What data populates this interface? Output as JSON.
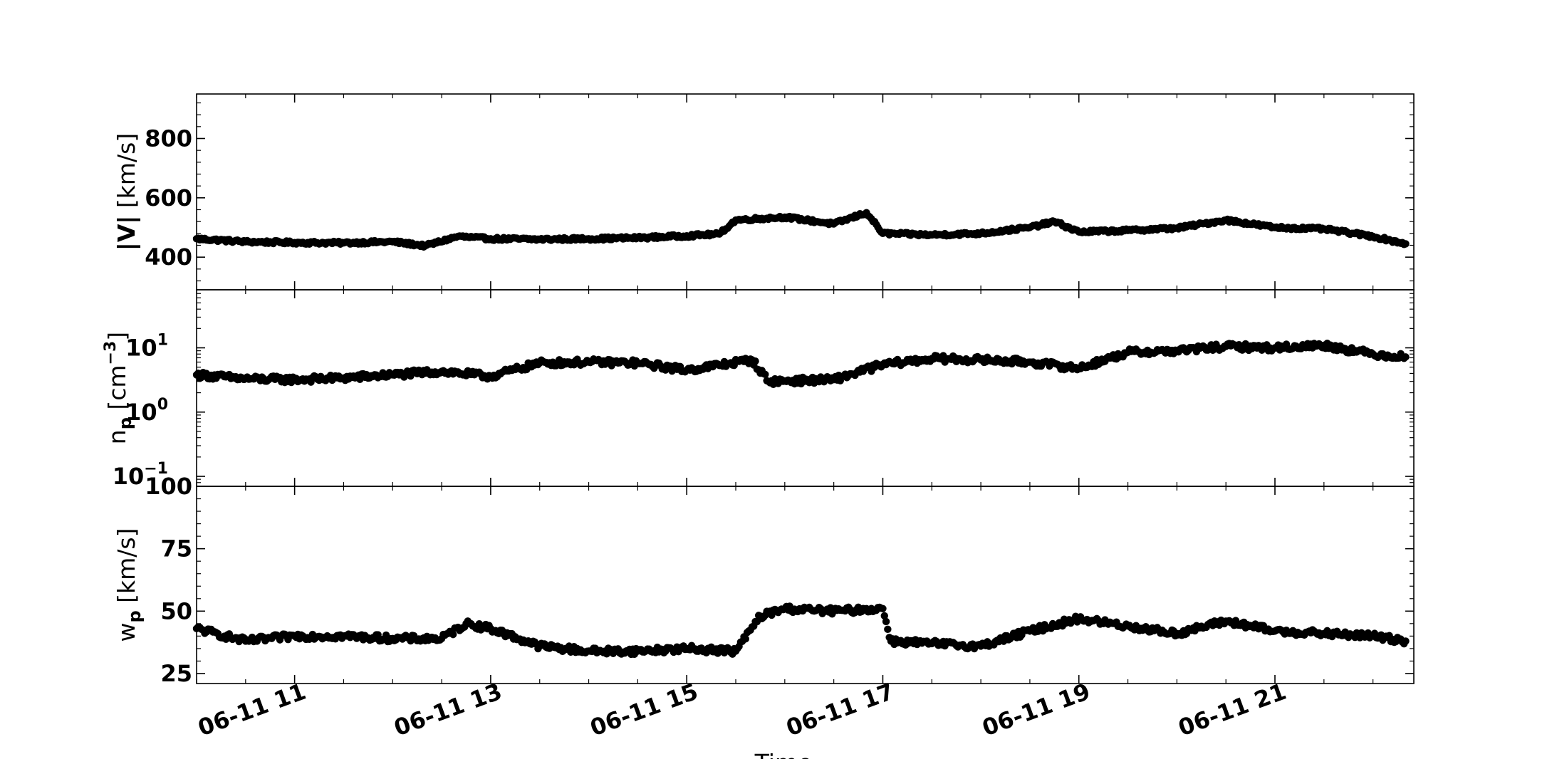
{
  "chart_data": [
    {
      "type": "scatter",
      "ylabel": "|V| [km/s]",
      "ylim": [
        290,
        950
      ],
      "yscale": "linear",
      "yticks": [
        400,
        600,
        800
      ],
      "ytick_labels": [
        "400",
        "600",
        "800"
      ],
      "series": [
        {
          "points": [
            [
              "06-11 10:00",
              462
            ],
            [
              "06-11 10:30",
              452
            ],
            [
              "06-11 11:00",
              449
            ],
            [
              "06-11 11:30",
              448
            ],
            [
              "06-11 12:00",
              452
            ],
            [
              "06-11 12:20",
              438
            ],
            [
              "06-11 12:40",
              470
            ],
            [
              "06-11 13:00",
              462
            ],
            [
              "06-11 13:30",
              460
            ],
            [
              "06-11 14:00",
              462
            ],
            [
              "06-11 14:30",
              465
            ],
            [
              "06-11 15:00",
              472
            ],
            [
              "06-11 15:20",
              478
            ],
            [
              "06-11 15:30",
              525
            ],
            [
              "06-11 16:00",
              535
            ],
            [
              "06-11 16:30",
              512
            ],
            [
              "06-11 16:50",
              550
            ],
            [
              "06-11 17:00",
              480
            ],
            [
              "06-11 17:30",
              475
            ],
            [
              "06-11 18:00",
              480
            ],
            [
              "06-11 18:30",
              500
            ],
            [
              "06-11 18:45",
              520
            ],
            [
              "06-11 19:00",
              485
            ],
            [
              "06-11 19:30",
              490
            ],
            [
              "06-11 20:00",
              498
            ],
            [
              "06-11 20:30",
              525
            ],
            [
              "06-11 21:00",
              500
            ],
            [
              "06-11 21:30",
              495
            ],
            [
              "06-11 22:00",
              470
            ],
            [
              "06-11 22:20",
              445
            ]
          ]
        }
      ]
    },
    {
      "type": "scatter",
      "ylabel": "n_p [cm^-3]",
      "ylim": [
        0.07,
        80
      ],
      "yscale": "log",
      "yticks": [
        0.1,
        1,
        10
      ],
      "ytick_labels": [
        "10",
        "10",
        "10"
      ],
      "ytick_exponents": [
        "−1",
        "0",
        "1"
      ],
      "series": [
        {
          "points": [
            [
              "06-11 10:00",
              3.8
            ],
            [
              "06-11 10:30",
              3.3
            ],
            [
              "06-11 11:00",
              3.2
            ],
            [
              "06-11 11:30",
              3.4
            ],
            [
              "06-11 12:00",
              3.8
            ],
            [
              "06-11 12:30",
              4.3
            ],
            [
              "06-11 13:00",
              3.6
            ],
            [
              "06-11 13:30",
              5.8
            ],
            [
              "06-11 14:00",
              6.0
            ],
            [
              "06-11 14:30",
              5.8
            ],
            [
              "06-11 15:00",
              4.5
            ],
            [
              "06-11 15:40",
              6.5
            ],
            [
              "06-11 15:50",
              3.0
            ],
            [
              "06-11 16:30",
              3.2
            ],
            [
              "06-11 17:00",
              5.5
            ],
            [
              "06-11 17:30",
              6.8
            ],
            [
              "06-11 18:00",
              6.5
            ],
            [
              "06-11 18:30",
              6.0
            ],
            [
              "06-11 19:00",
              4.8
            ],
            [
              "06-11 19:30",
              8.5
            ],
            [
              "06-11 20:00",
              9.0
            ],
            [
              "06-11 20:30",
              10.5
            ],
            [
              "06-11 21:00",
              10.0
            ],
            [
              "06-11 21:30",
              11.0
            ],
            [
              "06-11 22:00",
              8.0
            ],
            [
              "06-11 22:20",
              7.2
            ]
          ]
        }
      ]
    },
    {
      "type": "scatter",
      "ylabel": "w_p [km/s]",
      "ylim": [
        21,
        100
      ],
      "yscale": "linear",
      "yticks": [
        25,
        50,
        75,
        100
      ],
      "ytick_labels": [
        "25",
        "50",
        "75",
        "100"
      ],
      "xlabel": "Time",
      "xlim": [
        "06-11 10:00",
        "06-11 22:25"
      ],
      "xticks": [
        "06-11 11:00",
        "06-11 13:00",
        "06-11 15:00",
        "06-11 17:00",
        "06-11 19:00",
        "06-11 21:00"
      ],
      "xtick_labels": [
        "06-11 11",
        "06-11 13",
        "06-11 15",
        "06-11 17",
        "06-11 19",
        "06-11 21"
      ],
      "series": [
        {
          "points": [
            [
              "06-11 10:00",
              43
            ],
            [
              "06-11 10:30",
              38
            ],
            [
              "06-11 11:00",
              40
            ],
            [
              "06-11 11:30",
              40
            ],
            [
              "06-11 12:00",
              39
            ],
            [
              "06-11 12:30",
              39
            ],
            [
              "06-11 12:45",
              45
            ],
            [
              "06-11 13:00",
              43
            ],
            [
              "06-11 13:30",
              36
            ],
            [
              "06-11 14:00",
              34
            ],
            [
              "06-11 14:30",
              34
            ],
            [
              "06-11 15:00",
              35
            ],
            [
              "06-11 15:30",
              34
            ],
            [
              "06-11 15:45",
              48
            ],
            [
              "06-11 16:00",
              51
            ],
            [
              "06-11 16:30",
              50
            ],
            [
              "06-11 17:00",
              51
            ],
            [
              "06-11 17:05",
              38
            ],
            [
              "06-11 17:30",
              37
            ],
            [
              "06-11 18:00",
              36
            ],
            [
              "06-11 18:30",
              42
            ],
            [
              "06-11 19:00",
              47
            ],
            [
              "06-11 19:30",
              44
            ],
            [
              "06-11 20:00",
              41
            ],
            [
              "06-11 20:30",
              46
            ],
            [
              "06-11 21:00",
              42
            ],
            [
              "06-11 21:30",
              41
            ],
            [
              "06-11 22:00",
              40
            ],
            [
              "06-11 22:20",
              38
            ]
          ]
        }
      ]
    }
  ]
}
